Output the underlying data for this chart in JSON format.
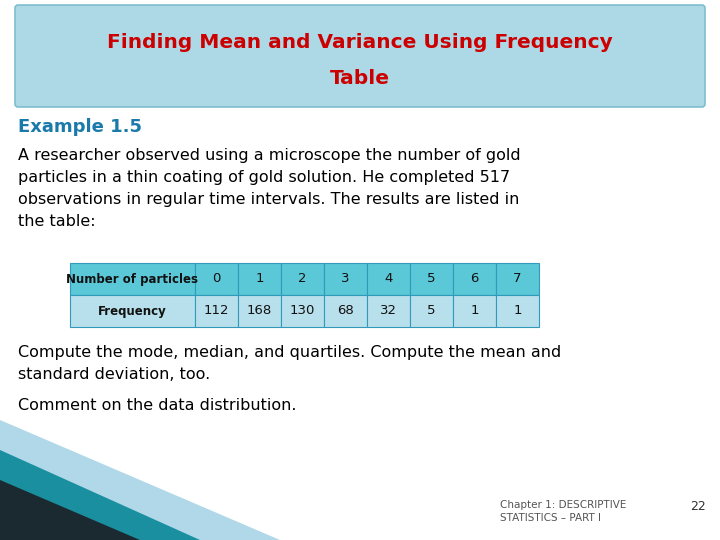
{
  "title_line1": "Finding Mean and Variance Using Frequency",
  "title_line2": "Table",
  "title_color": "#cc0000",
  "title_bg_color": "#add8e6",
  "example_label": "Example 1.5",
  "example_color": "#1a7aaa",
  "body_text_lines": [
    "A researcher observed using a microscope the number of gold",
    "particles in a thin coating of gold solution. He completed 517",
    "observations in regular time intervals. The results are listed in",
    "the table:"
  ],
  "body_color": "#000000",
  "table_header": [
    "Number of particles",
    "0",
    "1",
    "2",
    "3",
    "4",
    "5",
    "6",
    "7"
  ],
  "table_row": [
    "Frequency",
    "112",
    "168",
    "130",
    "68",
    "32",
    "5",
    "1",
    "1"
  ],
  "table_header_bg": "#5bc8d8",
  "table_row_bg": "#b8e0ec",
  "table_border_color": "#3399bb",
  "footer_text1_lines": [
    "Compute the mode, median, and quartiles. Compute the mean and",
    "standard deviation, too."
  ],
  "footer_text2": "Comment on the data distribution.",
  "footer_color": "#000000",
  "caption_text": "Chapter 1: DESCRIPTIVE\nSTATISTICS – PART I",
  "caption_page": "22",
  "bg_color": "#ffffff",
  "tri_teal": "#1a8fa0",
  "tri_dark": "#1a2a30",
  "tri_light": "#b0d8e8"
}
